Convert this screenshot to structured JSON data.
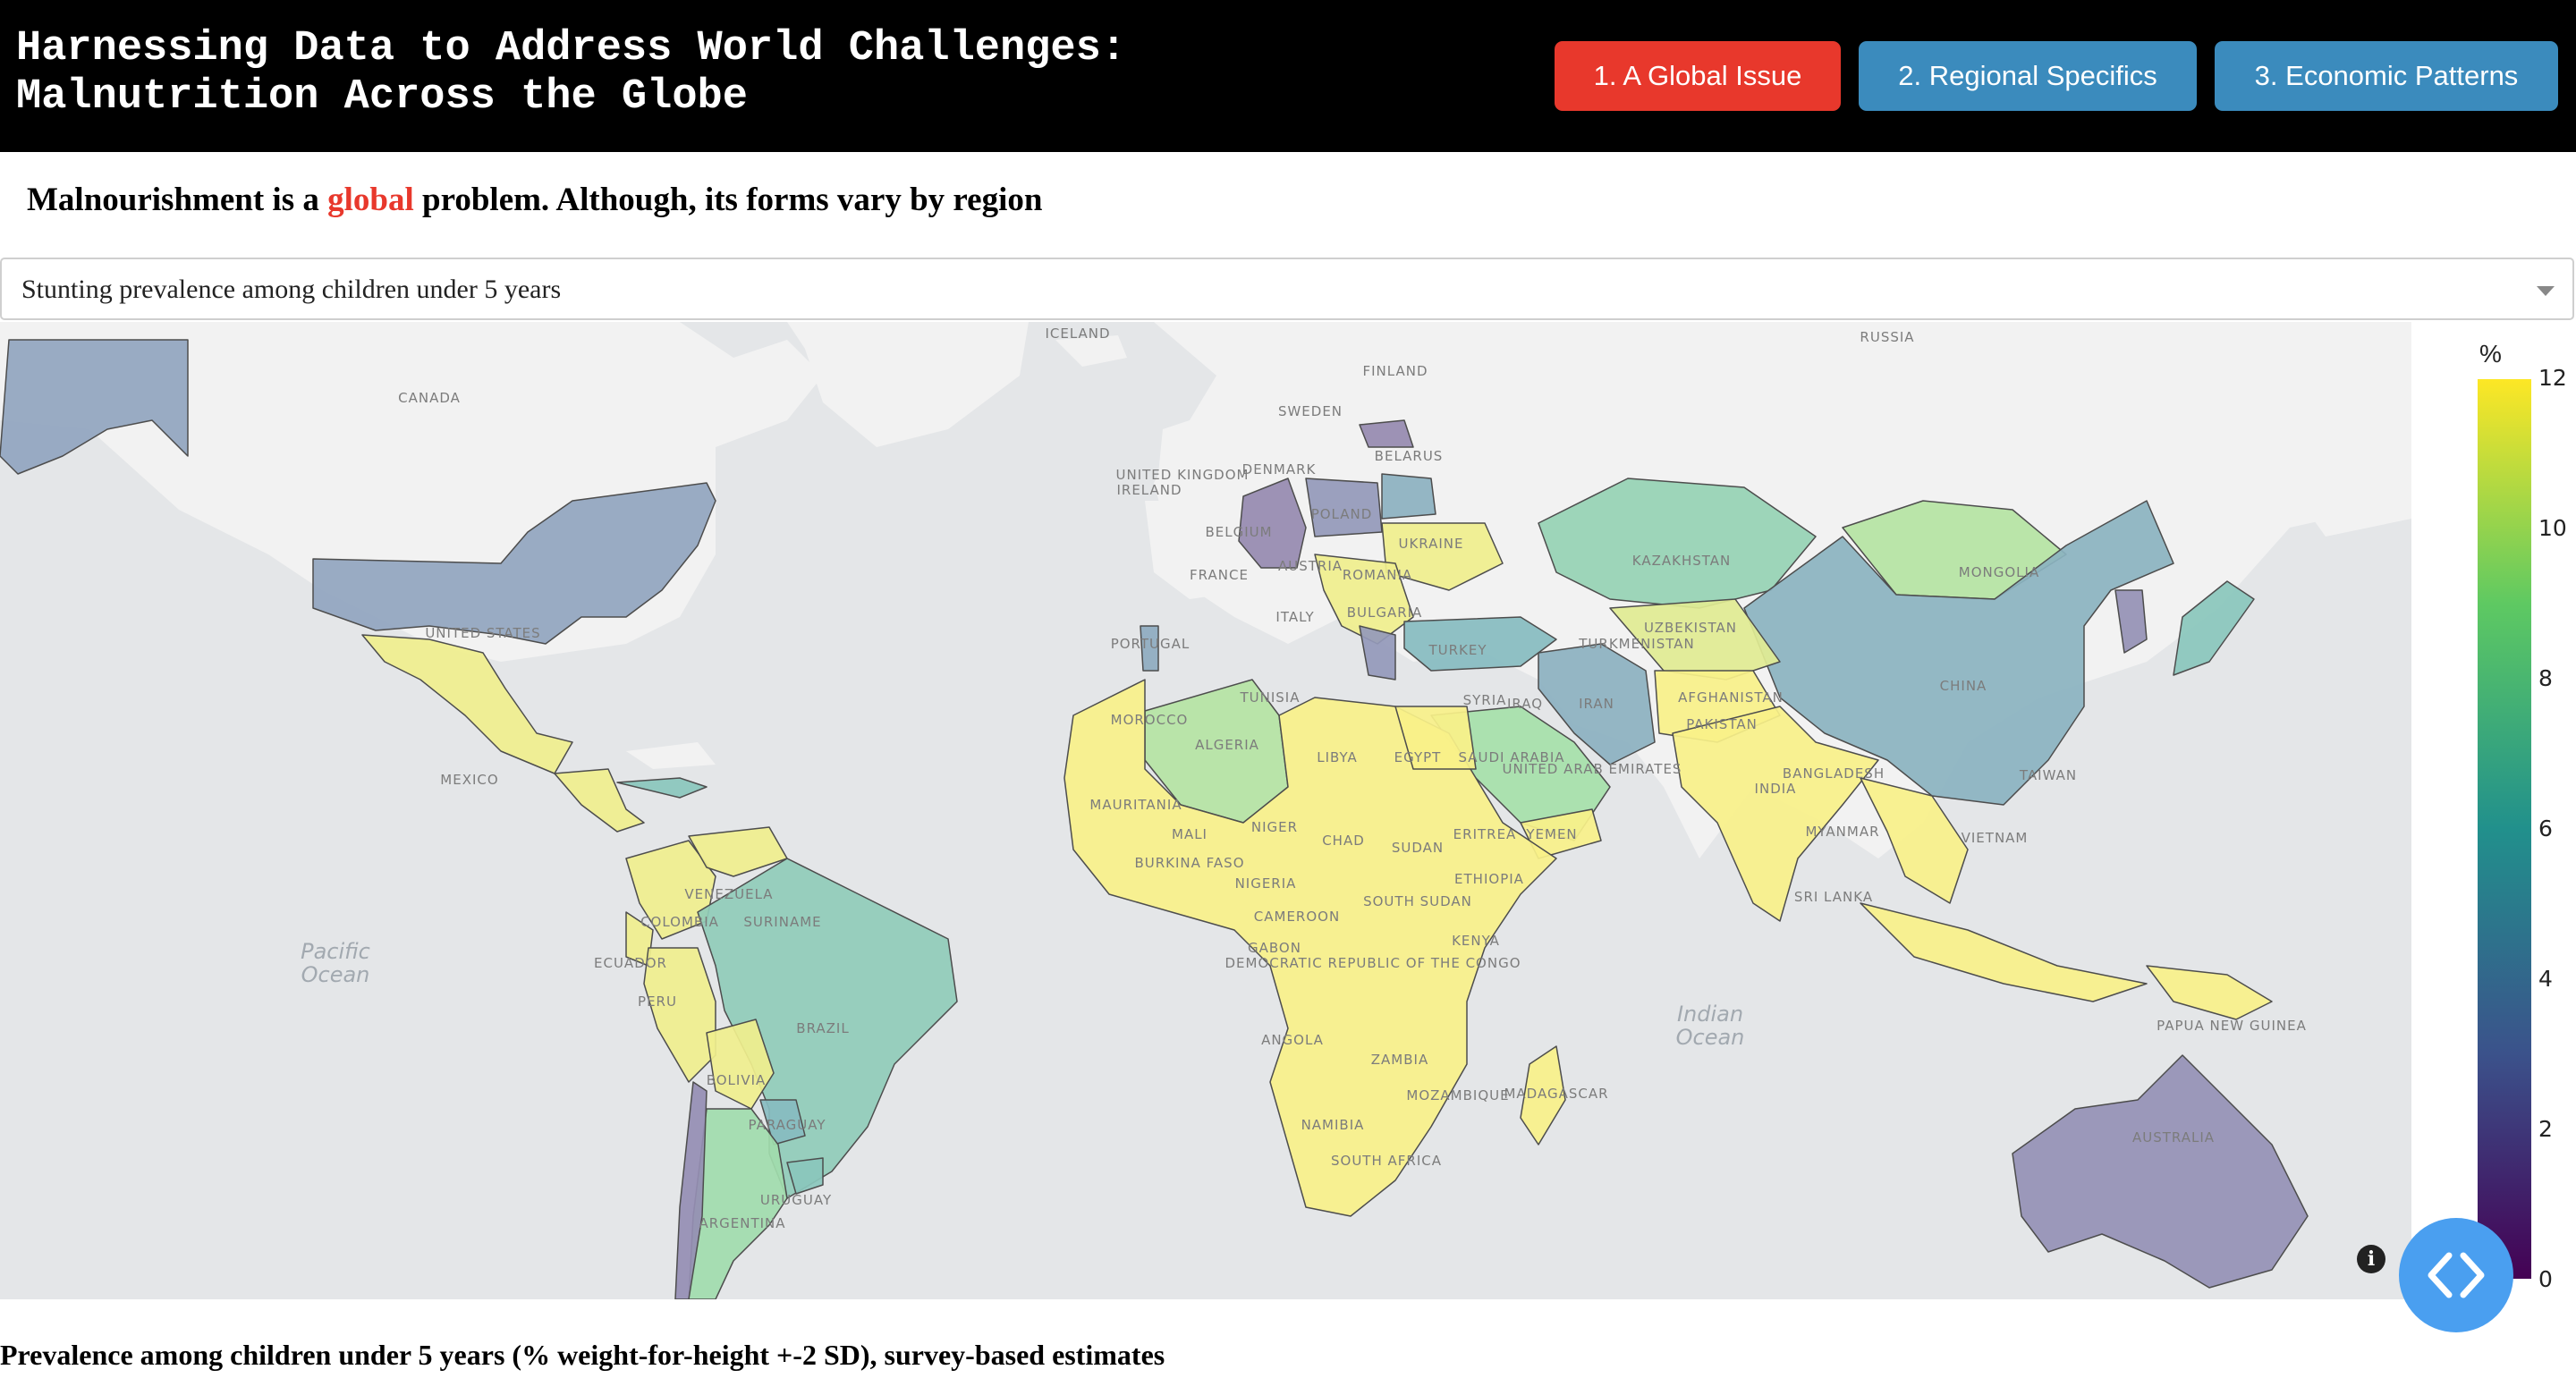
{
  "header": {
    "title": "Harnessing Data to Address World Challenges:\nMalnutrition Across the Globe",
    "nav": [
      {
        "label": "1. A Global Issue",
        "active": true
      },
      {
        "label": "2. Regional Specifics",
        "active": false
      },
      {
        "label": "3. Economic Patterns",
        "active": false
      }
    ]
  },
  "colors": {
    "nav_active": "#e8382c",
    "nav_inactive": "#3b8bbd",
    "header_bg": "#000000",
    "land": "#f2f2f2",
    "water": "#e4e6e8",
    "fab": "#4a9ff0"
  },
  "subtitle": {
    "before": "Malnourishment is a ",
    "highlight": "global",
    "after": " problem. Although, its forms vary by region"
  },
  "indicator_select": {
    "selected": "Stunting prevalence among children under 5 years"
  },
  "map": {
    "colorbar": {
      "title": "%",
      "ticks": [
        "12",
        "10",
        "8",
        "6",
        "4",
        "2",
        "0"
      ],
      "range": [
        0,
        12
      ],
      "colorscale": "viridis"
    },
    "country_labels": [
      "ICELAND",
      "RUSSIA",
      "FINLAND",
      "SWEDEN",
      "CANADA",
      "DENMARK",
      "UNITED KINGDOM",
      "IRELAND",
      "BELARUS",
      "POLAND",
      "BELGIUM",
      "UKRAINE",
      "FRANCE",
      "AUSTRIA",
      "ROMANIA",
      "KAZAKHSTAN",
      "MONGOLIA",
      "ITALY",
      "BULGARIA",
      "PORTUGAL",
      "TURKEY",
      "UZBEKISTAN",
      "TURKMENISTAN",
      "UNITED STATES",
      "TUNISIA",
      "SYRIA",
      "IRAQ",
      "IRAN",
      "AFGHANISTAN",
      "PAKISTAN",
      "CHINA",
      "MOROCCO",
      "ALGERIA",
      "LIBYA",
      "EGYPT",
      "SAUDI ARABIA",
      "UNITED ARAB EMIRATES",
      "INDIA",
      "BANGLADESH",
      "TAIWAN",
      "MEXICO",
      "MAURITANIA",
      "MALI",
      "NIGER",
      "CHAD",
      "SUDAN",
      "ERITREA",
      "YEMEN",
      "MYANMAR",
      "VIETNAM",
      "BURKINA FASO",
      "NIGERIA",
      "SOUTH SUDAN",
      "ETHIOPIA",
      "SRI LANKA",
      "VENEZUELA",
      "COLOMBIA",
      "SURINAME",
      "CAMEROON",
      "GABON",
      "DEMOCRATIC REPUBLIC OF THE CONGO",
      "KENYA",
      "ECUADOR",
      "PERU",
      "BRAZIL",
      "ANGOLA",
      "ZAMBIA",
      "MOZAMBIQUE",
      "MADAGASCAR",
      "PAPUA NEW GUINEA",
      "BOLIVIA",
      "PARAGUAY",
      "NAMIBIA",
      "AUSTRALIA",
      "SOUTH AFRICA",
      "URUGUAY",
      "ARGENTINA"
    ],
    "ocean_labels": [
      "Pacific Ocean",
      "Indian Ocean"
    ],
    "country_values": {
      "United States": 3.5,
      "Canada": null,
      "Greenland": null,
      "Mexico": 11.5,
      "Central America": 11.5,
      "Cuba": 6.5,
      "Colombia": 11.5,
      "Venezuela": 11.5,
      "Ecuador": 11.5,
      "Peru": 11.5,
      "Brazil": 7.0,
      "Bolivia": 11.5,
      "Paraguay": 5.5,
      "Argentina": 8.5,
      "Chile": 1.8,
      "Uruguay": 6.5,
      "Portugal": 4.0,
      "Germany": 1.5,
      "Poland": 2.5,
      "Belarus": 4.5,
      "Ukraine": 11.5,
      "Estonia": 1.5,
      "Balkans": 11.5,
      "Greece": 2.5,
      "Turkey": 5.5,
      "Kazakhstan": 7.5,
      "Mongolia": 9.5,
      "China": 4.7,
      "Korea": 2.0,
      "Japan": 6.5,
      "Iran": 4.5,
      "Central Asia": 11.0,
      "Afghanistan": 11.8,
      "India": 11.8,
      "Southeast Asia": 11.8,
      "Saudi Arabia": 9.0,
      "Yemen": 11.8,
      "Algeria": 9.5,
      "Africa": 11.8,
      "Egypt": 11.8,
      "Madagascar": 11.8,
      "Australia": 2.0,
      "Papua New Guinea": 11.8,
      "Indonesia": 11.8
    }
  },
  "footer": {
    "caption": "Prevalence among children under 5 years (% weight-for-height +-2 SD), survey-based estimates"
  }
}
